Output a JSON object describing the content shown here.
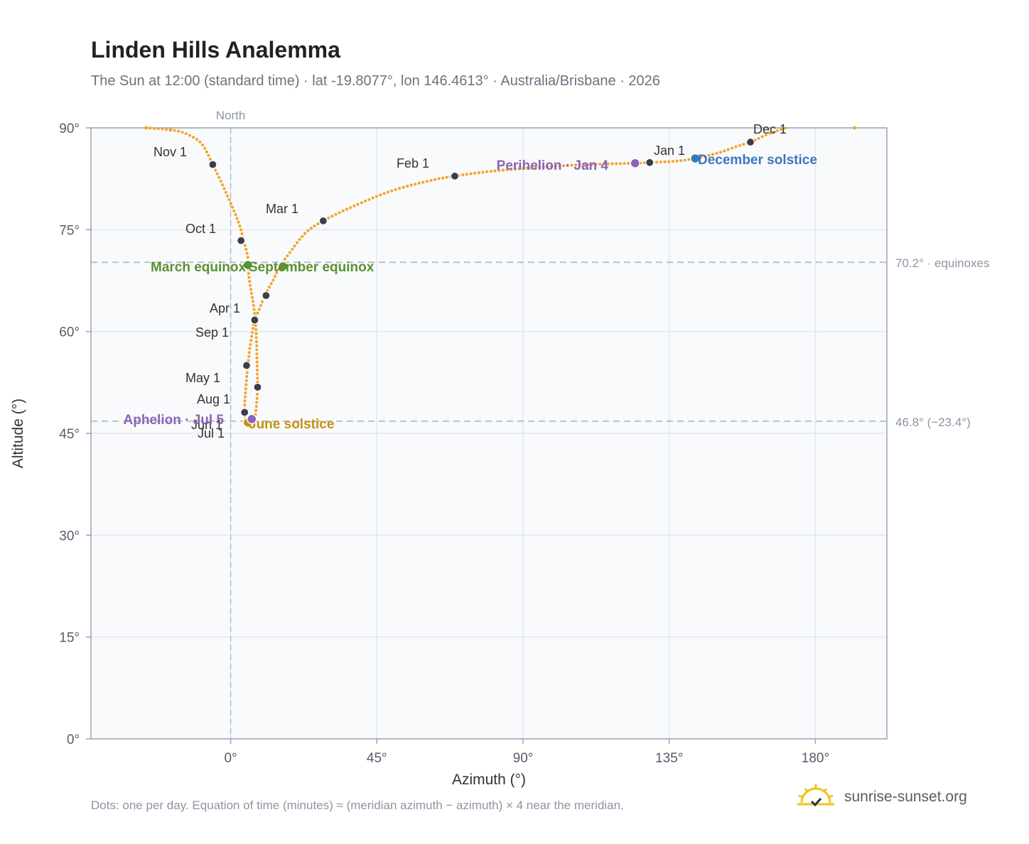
{
  "title": "Linden Hills Analemma",
  "subtitle": "The Sun at 12:00 (standard time) · lat -19.8077°, lon 146.4613° · Australia/Brisbane · 2026",
  "footnote": "Dots: one per day. Equation of time (minutes) ≈ (meridian azimuth − azimuth) × 4 near the meridian.",
  "brand": {
    "text": "sunrise-sunset.org",
    "logo_icon": "sun-check-icon"
  },
  "colors": {
    "path": "#f2a52a",
    "month_marker": "#3a3f4b",
    "equinox": "#5a9132",
    "june_solstice": "#c8900e",
    "december_solstice": "#3a77bd",
    "perihelion_aphelion": "#8c63b4",
    "plot_bg": "#f8fafc",
    "grid": "#e3e8ee",
    "ref_line": "#b4c0cc"
  },
  "chart_data": {
    "type": "scatter",
    "xlabel": "Azimuth (°)",
    "ylabel": "Altitude (°)",
    "xlim": [
      -43,
      202
    ],
    "ylim": [
      0,
      90
    ],
    "xticks": [
      {
        "value": 0,
        "label": "0°"
      },
      {
        "value": 45,
        "label": "45°"
      },
      {
        "value": 90,
        "label": "90°"
      },
      {
        "value": 135,
        "label": "135°"
      },
      {
        "value": 180,
        "label": "180°"
      }
    ],
    "yticks": [
      {
        "value": 0,
        "label": "0°"
      },
      {
        "value": 15,
        "label": "15°"
      },
      {
        "value": 30,
        "label": "30°"
      },
      {
        "value": 45,
        "label": "45°"
      },
      {
        "value": 60,
        "label": "60°"
      },
      {
        "value": 75,
        "label": "75°"
      },
      {
        "value": 90,
        "label": "90°"
      }
    ],
    "grid": true,
    "vertical_reference": {
      "value": 0,
      "label": "North"
    },
    "horizontal_references": [
      {
        "value": 70.2,
        "label": "70.2° · equinoxes"
      },
      {
        "value": 46.8,
        "label": "46.8° (−23.4°)"
      }
    ],
    "daily_path": [
      [
        -26,
        90
      ],
      [
        -18.5,
        89.7
      ],
      [
        -14,
        89.2
      ],
      [
        -9,
        87.7
      ],
      [
        -5.5,
        84.6
      ],
      [
        -1,
        80
      ],
      [
        2.5,
        76
      ],
      [
        4,
        73.4
      ],
      [
        5.2,
        71.2
      ],
      [
        5.3,
        69.8
      ],
      [
        5.8,
        67.5
      ],
      [
        7,
        64
      ],
      [
        7.6,
        61.6
      ],
      [
        8,
        58
      ],
      [
        8.2,
        54
      ],
      [
        8.3,
        51.8
      ],
      [
        8,
        49.5
      ],
      [
        7.5,
        47.5
      ],
      [
        6.5,
        46.8
      ],
      [
        5.5,
        46.9
      ],
      [
        4.6,
        47.3
      ],
      [
        4.3,
        48.1
      ],
      [
        4.4,
        50
      ],
      [
        4.9,
        53
      ],
      [
        5.3,
        55
      ],
      [
        5.9,
        57.5
      ],
      [
        6.8,
        60.3
      ],
      [
        7.4,
        61.7
      ],
      [
        9,
        63.5
      ],
      [
        10.5,
        65.3
      ],
      [
        13,
        67.5
      ],
      [
        15.2,
        69.6
      ],
      [
        18,
        71.5
      ],
      [
        23,
        74.5
      ],
      [
        28.5,
        76.3
      ],
      [
        38,
        78.5
      ],
      [
        50,
        80.8
      ],
      [
        62,
        82.3
      ],
      [
        69,
        82.9
      ],
      [
        80,
        83.6
      ],
      [
        95,
        84.2
      ],
      [
        110,
        84.6
      ],
      [
        124,
        84.8
      ],
      [
        129,
        84.9
      ],
      [
        137,
        85.1
      ],
      [
        143,
        85.5
      ],
      [
        150,
        86.3
      ],
      [
        156,
        87.3
      ],
      [
        160,
        87.9
      ],
      [
        165,
        89
      ],
      [
        169,
        89.7
      ],
      [
        171,
        90
      ]
    ],
    "edge_dots": [
      [
        -26,
        90
      ],
      [
        -18.5,
        89.7
      ],
      [
        192,
        90
      ]
    ],
    "month_markers": [
      {
        "label": "Jan 1",
        "az": 129,
        "alt": 84.9
      },
      {
        "label": "Feb 1",
        "az": 69,
        "alt": 82.9
      },
      {
        "label": "Mar 1",
        "az": 28.5,
        "alt": 76.3
      },
      {
        "label": "Apr 1",
        "az": 7.4,
        "alt": 61.7
      },
      {
        "label": "May 1",
        "az": 8.3,
        "alt": 51.8
      },
      {
        "label": "Jun 1",
        "az": 4.3,
        "alt": 48.1
      },
      {
        "label": "Jul 1",
        "az": 5.5,
        "alt": 46.9
      },
      {
        "label": "Aug 1",
        "az": 4.3,
        "alt": 48.1
      },
      {
        "label": "Sep 1",
        "az": 4.9,
        "alt": 55
      },
      {
        "label": "Oct 1",
        "az": 3.2,
        "alt": 73.4
      },
      {
        "label": "Nov 1",
        "az": -5.5,
        "alt": 84.6
      },
      {
        "label": "Dec 1",
        "az": 160,
        "alt": 87.9
      },
      {
        "label": "",
        "az": 10.9,
        "alt": 65.3
      }
    ],
    "events": [
      {
        "label": "March equinox",
        "az": 5.3,
        "alt": 69.8,
        "color": "#5a9132"
      },
      {
        "label": "September equinox",
        "az": 16.1,
        "alt": 69.6,
        "color": "#5a9132"
      },
      {
        "label": "June solstice",
        "az": 5.3,
        "alt": 46.6,
        "color": "#c8900e"
      },
      {
        "label": "December solstice",
        "az": 143,
        "alt": 85.5,
        "color": "#3a77bd"
      },
      {
        "label": "Perihelion · Jan 4",
        "az": 124.5,
        "alt": 84.8,
        "color": "#8c63b4"
      },
      {
        "label": "Aphelion · Jul 5",
        "az": 6.5,
        "alt": 47.1,
        "color": "#8c63b4"
      }
    ]
  }
}
